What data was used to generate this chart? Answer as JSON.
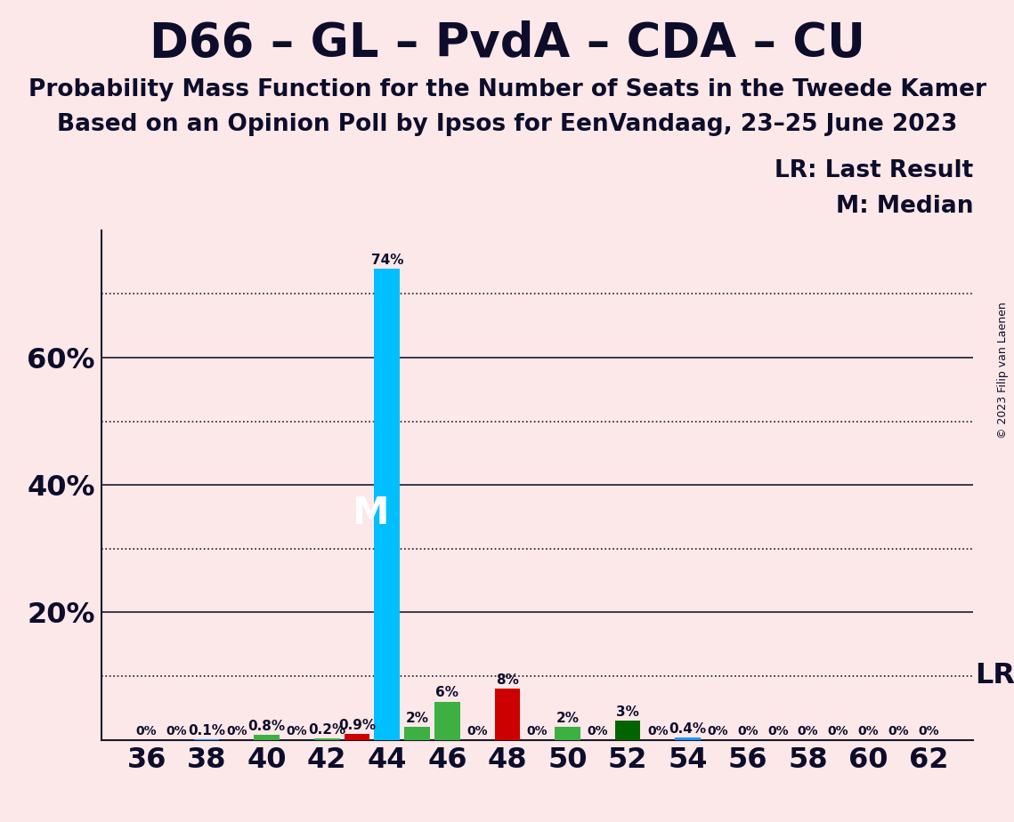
{
  "title": "D66 – GL – PvdA – CDA – CU",
  "subtitle1": "Probability Mass Function for the Number of Seats in the Tweede Kamer",
  "subtitle2": "Based on an Opinion Poll by Ipsos for EenVandaag, 23–25 June 2023",
  "copyright": "© 2023 Filip van Laenen",
  "background_color": "#fce8e8",
  "seats": [
    36,
    37,
    38,
    39,
    40,
    41,
    42,
    43,
    44,
    45,
    46,
    47,
    48,
    49,
    50,
    51,
    52,
    53,
    54,
    55,
    56,
    57,
    58,
    59,
    60,
    61,
    62
  ],
  "probabilities": [
    0.0,
    0.0,
    0.001,
    0.0,
    0.008,
    0.0,
    0.002,
    0.009,
    0.74,
    0.02,
    0.06,
    0.0,
    0.08,
    0.0,
    0.02,
    0.0,
    0.03,
    0.0,
    0.004,
    0.0,
    0.0,
    0.0,
    0.0,
    0.0,
    0.0,
    0.0,
    0.0
  ],
  "bar_colors": [
    "#fce8e8",
    "#fce8e8",
    "#1e90ff",
    "#fce8e8",
    "#3cb043",
    "#fce8e8",
    "#3cb043",
    "#cc0000",
    "#00bfff",
    "#3cb043",
    "#3cb043",
    "#fce8e8",
    "#cc0000",
    "#fce8e8",
    "#3cb043",
    "#fce8e8",
    "#006400",
    "#fce8e8",
    "#1e90ff",
    "#fce8e8",
    "#fce8e8",
    "#fce8e8",
    "#fce8e8",
    "#fce8e8",
    "#fce8e8",
    "#fce8e8",
    "#fce8e8"
  ],
  "labels": [
    "0%",
    "0%",
    "0.1%",
    "0%",
    "0.8%",
    "0%",
    "0.2%",
    "0.9%",
    "74%",
    "2%",
    "6%",
    "0%",
    "8%",
    "0%",
    "2%",
    "0%",
    "3%",
    "0%",
    "0.4%",
    "0%",
    "0%",
    "0%",
    "0%",
    "0%",
    "0%",
    "0%",
    "0%"
  ],
  "median_seat": 44,
  "lr_value": 0.1,
  "lr_label": "LR",
  "median_label": "M",
  "legend_lr": "LR: Last Result",
  "legend_m": "M: Median",
  "ylim": [
    0,
    0.8
  ],
  "solid_gridlines": [
    0.2,
    0.4,
    0.6
  ],
  "dotted_gridlines": [
    0.1,
    0.3,
    0.5,
    0.7
  ],
  "ytick_positions": [
    0.2,
    0.4,
    0.6
  ],
  "ytick_labels": [
    "20%",
    "40%",
    "60%"
  ],
  "xticks": [
    36,
    38,
    40,
    42,
    44,
    46,
    48,
    50,
    52,
    54,
    56,
    58,
    60,
    62
  ],
  "bar_width": 0.85,
  "title_fontsize": 38,
  "subtitle_fontsize": 19,
  "axis_fontsize": 23,
  "label_fontsize": 11,
  "median_label_fontsize": 30,
  "legend_fontsize": 19,
  "lr_fontsize": 23,
  "text_color": "#0d0d2b"
}
